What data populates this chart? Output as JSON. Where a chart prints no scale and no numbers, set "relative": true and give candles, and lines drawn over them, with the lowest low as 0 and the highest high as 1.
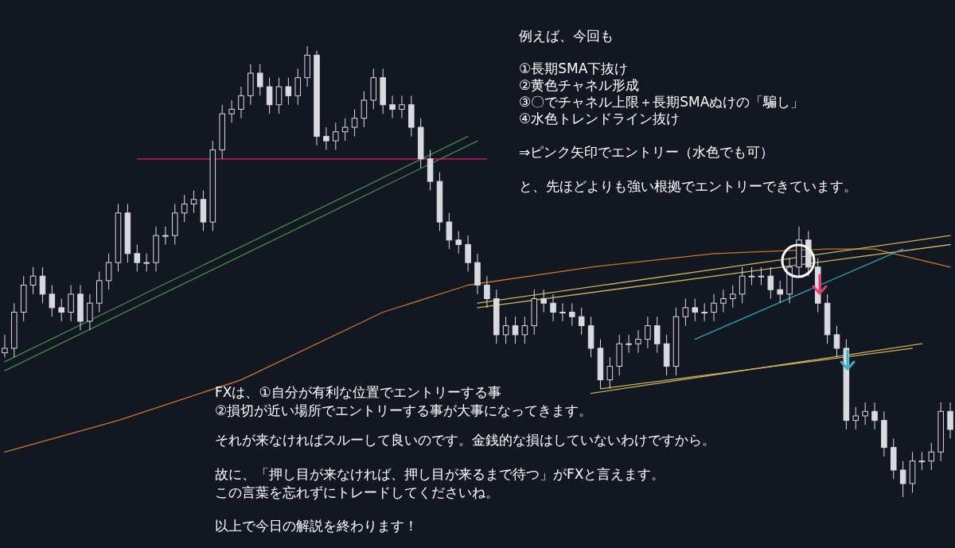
{
  "chart_data": {
    "type": "candlestick",
    "relative": true,
    "color": "#d9dadf",
    "categories": [
      null,
      null,
      null,
      null,
      null,
      null,
      null,
      null,
      null,
      null,
      null,
      null,
      null,
      null,
      null,
      null,
      null,
      null,
      null,
      null,
      null,
      null,
      null,
      null,
      null,
      null,
      null,
      null,
      null,
      null,
      null,
      null,
      null,
      null,
      null,
      null,
      null,
      null,
      null,
      null,
      null,
      null,
      null,
      null,
      null,
      null,
      null,
      null,
      null,
      null,
      null,
      null,
      null,
      null,
      null,
      null,
      null,
      null,
      null,
      null,
      null,
      null,
      null,
      null,
      null,
      null,
      null,
      null,
      null,
      null,
      null,
      null,
      null,
      null,
      null,
      null,
      null,
      null,
      null,
      null,
      null,
      null,
      null,
      null,
      null,
      null,
      null,
      null,
      null,
      null,
      null,
      null,
      null,
      null,
      null,
      null,
      null,
      null,
      null,
      null,
      null
    ],
    "ohlc": [
      [
        0.32,
        0.36,
        0.31,
        0.33
      ],
      [
        0.33,
        0.43,
        0.31,
        0.41
      ],
      [
        0.41,
        0.49,
        0.39,
        0.47
      ],
      [
        0.47,
        0.51,
        0.45,
        0.49
      ],
      [
        0.49,
        0.51,
        0.43,
        0.45
      ],
      [
        0.45,
        0.47,
        0.4,
        0.42
      ],
      [
        0.42,
        0.44,
        0.39,
        0.41
      ],
      [
        0.41,
        0.47,
        0.39,
        0.45
      ],
      [
        0.45,
        0.47,
        0.37,
        0.39
      ],
      [
        0.39,
        0.45,
        0.37,
        0.43
      ],
      [
        0.43,
        0.5,
        0.41,
        0.48
      ],
      [
        0.48,
        0.54,
        0.46,
        0.52
      ],
      [
        0.52,
        0.65,
        0.5,
        0.63
      ],
      [
        0.63,
        0.65,
        0.52,
        0.54
      ],
      [
        0.54,
        0.56,
        0.5,
        0.52
      ],
      [
        0.52,
        0.54,
        0.5,
        0.52
      ],
      [
        0.52,
        0.6,
        0.5,
        0.58
      ],
      [
        0.58,
        0.6,
        0.56,
        0.58
      ],
      [
        0.58,
        0.65,
        0.56,
        0.63
      ],
      [
        0.63,
        0.67,
        0.61,
        0.65
      ],
      [
        0.65,
        0.68,
        0.63,
        0.66
      ],
      [
        0.66,
        0.68,
        0.59,
        0.61
      ],
      [
        0.61,
        0.79,
        0.59,
        0.77
      ],
      [
        0.77,
        0.87,
        0.75,
        0.85
      ],
      [
        0.85,
        0.88,
        0.83,
        0.86
      ],
      [
        0.86,
        0.91,
        0.84,
        0.89
      ],
      [
        0.89,
        0.96,
        0.87,
        0.94
      ],
      [
        0.94,
        0.96,
        0.89,
        0.91
      ],
      [
        0.91,
        0.93,
        0.85,
        0.87
      ],
      [
        0.87,
        0.93,
        0.85,
        0.91
      ],
      [
        0.91,
        0.93,
        0.87,
        0.89
      ],
      [
        0.89,
        0.95,
        0.87,
        0.93
      ],
      [
        0.93,
        1.0,
        0.91,
        0.98
      ],
      [
        0.98,
        0.99,
        0.78,
        0.8
      ],
      [
        0.8,
        0.82,
        0.77,
        0.79
      ],
      [
        0.79,
        0.83,
        0.77,
        0.81
      ],
      [
        0.81,
        0.84,
        0.79,
        0.82
      ],
      [
        0.82,
        0.86,
        0.8,
        0.84
      ],
      [
        0.84,
        0.9,
        0.82,
        0.88
      ],
      [
        0.88,
        0.95,
        0.86,
        0.93
      ],
      [
        0.93,
        0.95,
        0.85,
        0.87
      ],
      [
        0.87,
        0.89,
        0.84,
        0.86
      ],
      [
        0.86,
        0.89,
        0.84,
        0.87
      ],
      [
        0.87,
        0.89,
        0.8,
        0.82
      ],
      [
        0.82,
        0.84,
        0.73,
        0.75
      ],
      [
        0.75,
        0.77,
        0.68,
        0.7
      ],
      [
        0.7,
        0.72,
        0.59,
        0.61
      ],
      [
        0.61,
        0.63,
        0.55,
        0.57
      ],
      [
        0.57,
        0.59,
        0.54,
        0.56
      ],
      [
        0.56,
        0.58,
        0.5,
        0.52
      ],
      [
        0.52,
        0.54,
        0.45,
        0.47
      ],
      [
        0.47,
        0.49,
        0.42,
        0.44
      ],
      [
        0.44,
        0.46,
        0.34,
        0.36
      ],
      [
        0.36,
        0.4,
        0.34,
        0.38
      ],
      [
        0.38,
        0.4,
        0.34,
        0.36
      ],
      [
        0.36,
        0.4,
        0.34,
        0.38
      ],
      [
        0.38,
        0.46,
        0.36,
        0.44
      ],
      [
        0.44,
        0.46,
        0.41,
        0.43
      ],
      [
        0.43,
        0.45,
        0.39,
        0.41
      ],
      [
        0.41,
        0.43,
        0.39,
        0.41
      ],
      [
        0.41,
        0.43,
        0.38,
        0.4
      ],
      [
        0.4,
        0.42,
        0.36,
        0.38
      ],
      [
        0.38,
        0.4,
        0.31,
        0.33
      ],
      [
        0.33,
        0.35,
        0.24,
        0.26
      ],
      [
        0.26,
        0.31,
        0.24,
        0.29
      ],
      [
        0.29,
        0.36,
        0.27,
        0.34
      ],
      [
        0.34,
        0.36,
        0.32,
        0.34
      ],
      [
        0.34,
        0.37,
        0.32,
        0.35
      ],
      [
        0.35,
        0.4,
        0.33,
        0.38
      ],
      [
        0.38,
        0.4,
        0.32,
        0.34
      ],
      [
        0.34,
        0.36,
        0.27,
        0.29
      ],
      [
        0.29,
        0.42,
        0.27,
        0.4
      ],
      [
        0.4,
        0.44,
        0.38,
        0.42
      ],
      [
        0.42,
        0.44,
        0.39,
        0.41
      ],
      [
        0.41,
        0.43,
        0.39,
        0.41
      ],
      [
        0.41,
        0.45,
        0.39,
        0.43
      ],
      [
        0.43,
        0.46,
        0.41,
        0.44
      ],
      [
        0.44,
        0.47,
        0.42,
        0.45
      ],
      [
        0.45,
        0.51,
        0.43,
        0.49
      ],
      [
        0.49,
        0.51,
        0.47,
        0.49
      ],
      [
        0.49,
        0.51,
        0.47,
        0.49
      ],
      [
        0.49,
        0.51,
        0.44,
        0.46
      ],
      [
        0.46,
        0.48,
        0.43,
        0.45
      ],
      [
        0.45,
        0.53,
        0.43,
        0.51
      ],
      [
        0.51,
        0.6,
        0.49,
        0.57
      ],
      [
        0.57,
        0.59,
        0.49,
        0.51
      ],
      [
        0.51,
        0.53,
        0.41,
        0.43
      ],
      [
        0.43,
        0.45,
        0.34,
        0.36
      ],
      [
        0.36,
        0.38,
        0.31,
        0.33
      ],
      [
        0.33,
        0.35,
        0.15,
        0.17
      ],
      [
        0.17,
        0.2,
        0.15,
        0.18
      ],
      [
        0.18,
        0.21,
        0.16,
        0.19
      ],
      [
        0.19,
        0.21,
        0.15,
        0.17
      ],
      [
        0.17,
        0.19,
        0.09,
        0.11
      ],
      [
        0.11,
        0.13,
        0.04,
        0.06
      ],
      [
        0.06,
        0.08,
        0.0,
        0.03
      ],
      [
        0.03,
        0.1,
        0.01,
        0.08
      ],
      [
        0.08,
        0.1,
        0.06,
        0.08
      ],
      [
        0.08,
        0.12,
        0.06,
        0.1
      ],
      [
        0.1,
        0.21,
        0.08,
        0.19
      ],
      [
        0.19,
        0.21,
        0.13,
        0.15
      ]
    ],
    "series": [
      {
        "type": "line",
        "color": "#c97a2c",
        "values": [
          0.1,
          null,
          null,
          null,
          null,
          null,
          null,
          null,
          null,
          null,
          null,
          null,
          0.17,
          null,
          null,
          null,
          null,
          null,
          null,
          null,
          null,
          null,
          null,
          null,
          null,
          0.26,
          null,
          null,
          null,
          null,
          null,
          null,
          null,
          null,
          null,
          null,
          null,
          null,
          null,
          null,
          0.41,
          null,
          null,
          null,
          null,
          null,
          null,
          null,
          null,
          0.47,
          null,
          null,
          null,
          null,
          null,
          null,
          null,
          null,
          null,
          null,
          null,
          null,
          0.51,
          null,
          null,
          null,
          null,
          null,
          null,
          null,
          null,
          null,
          null,
          null,
          null,
          0.54,
          null,
          null,
          null,
          null,
          null,
          null,
          null,
          null,
          null,
          null,
          null,
          0.55,
          null,
          null,
          null,
          null,
          0.55,
          null,
          null,
          null,
          null,
          null,
          null,
          null,
          0.51
        ]
      },
      {
        "type": "line",
        "color": "#3f8f47",
        "values": [
          0.3,
          null,
          null,
          null,
          null,
          null,
          null,
          null,
          null,
          null,
          null,
          null,
          null,
          null,
          null,
          null,
          null,
          null,
          null,
          null,
          null,
          null,
          null,
          null,
          null,
          null,
          null,
          null,
          null,
          null,
          null,
          null,
          null,
          null,
          null,
          null,
          null,
          null,
          null,
          null,
          null,
          null,
          null,
          null,
          null,
          null,
          null,
          null,
          null,
          0.8,
          null,
          null,
          null,
          null,
          null,
          null,
          null,
          null,
          null,
          null,
          null,
          null,
          null,
          null,
          null,
          null,
          null,
          null,
          null,
          null,
          null,
          null,
          null,
          null,
          null,
          null,
          null,
          null,
          null,
          null,
          null,
          null,
          null,
          null,
          null,
          null,
          null,
          null,
          null,
          null,
          null,
          null,
          null,
          null,
          null,
          null,
          null,
          null,
          null,
          null,
          null
        ]
      },
      {
        "type": "line",
        "color": "#3f8f47",
        "values": [
          0.28,
          null,
          null,
          null,
          null,
          null,
          null,
          null,
          null,
          null,
          null,
          null,
          null,
          null,
          null,
          null,
          null,
          null,
          null,
          null,
          null,
          null,
          null,
          null,
          null,
          null,
          null,
          null,
          null,
          null,
          null,
          null,
          null,
          null,
          null,
          null,
          null,
          null,
          null,
          null,
          null,
          null,
          null,
          null,
          null,
          null,
          null,
          null,
          null,
          null,
          0.79,
          null,
          null,
          null,
          null,
          null,
          null,
          null,
          null,
          null,
          null,
          null,
          null,
          null,
          null,
          null,
          null,
          null,
          null,
          null,
          null,
          null,
          null,
          null,
          null,
          null,
          null,
          null,
          null,
          null,
          null,
          null,
          null,
          null,
          null,
          null,
          null,
          null,
          null,
          null,
          null,
          null,
          null,
          null,
          null,
          null,
          null,
          null,
          null,
          null,
          null
        ]
      },
      {
        "type": "line",
        "color": "#e91e63",
        "values": [
          null,
          null,
          null,
          null,
          null,
          null,
          null,
          null,
          null,
          null,
          null,
          null,
          null,
          null,
          0.75,
          null,
          null,
          null,
          null,
          null,
          null,
          null,
          null,
          null,
          null,
          null,
          null,
          null,
          null,
          null,
          null,
          null,
          null,
          null,
          null,
          null,
          null,
          null,
          null,
          null,
          null,
          null,
          null,
          null,
          null,
          null,
          null,
          null,
          null,
          null,
          null,
          0.75,
          null,
          null,
          null,
          null,
          null,
          null,
          null,
          null,
          null,
          null,
          null,
          null,
          null,
          null,
          null,
          null,
          null,
          null,
          null,
          null,
          null,
          null,
          null,
          null,
          null,
          null,
          null,
          null,
          null,
          null,
          null,
          null,
          null,
          null,
          null,
          null,
          null,
          null,
          null,
          null,
          null,
          null,
          null,
          null,
          null,
          null,
          null,
          null,
          null
        ]
      },
      {
        "type": "line",
        "color": "#c9b458",
        "values": [
          null,
          null,
          null,
          null,
          null,
          null,
          null,
          null,
          null,
          null,
          null,
          null,
          null,
          null,
          null,
          null,
          null,
          null,
          null,
          null,
          null,
          null,
          null,
          null,
          null,
          null,
          null,
          null,
          null,
          null,
          null,
          null,
          null,
          null,
          null,
          null,
          null,
          null,
          null,
          null,
          null,
          null,
          null,
          null,
          null,
          null,
          null,
          null,
          null,
          null,
          0.43,
          null,
          null,
          null,
          null,
          null,
          null,
          null,
          null,
          null,
          null,
          null,
          null,
          null,
          null,
          null,
          null,
          null,
          null,
          null,
          null,
          null,
          null,
          null,
          null,
          null,
          null,
          null,
          null,
          null,
          null,
          null,
          null,
          null,
          null,
          null,
          null,
          null,
          null,
          null,
          null,
          null,
          null,
          null,
          null,
          null,
          null,
          null,
          null,
          null,
          0.58
        ]
      },
      {
        "type": "line",
        "color": "#c9b458",
        "values": [
          null,
          null,
          null,
          null,
          null,
          null,
          null,
          null,
          null,
          null,
          null,
          null,
          null,
          null,
          null,
          null,
          null,
          null,
          null,
          null,
          null,
          null,
          null,
          null,
          null,
          null,
          null,
          null,
          null,
          null,
          null,
          null,
          null,
          null,
          null,
          null,
          null,
          null,
          null,
          null,
          null,
          null,
          null,
          null,
          null,
          null,
          null,
          null,
          null,
          null,
          0.42,
          null,
          null,
          null,
          null,
          null,
          null,
          null,
          null,
          null,
          null,
          null,
          null,
          null,
          null,
          null,
          null,
          null,
          null,
          null,
          null,
          null,
          null,
          null,
          null,
          null,
          null,
          null,
          null,
          null,
          null,
          null,
          null,
          null,
          null,
          null,
          null,
          null,
          null,
          null,
          null,
          null,
          null,
          null,
          null,
          null,
          null,
          null,
          null,
          null,
          0.56
        ]
      },
      {
        "type": "line",
        "color": "#c9b458",
        "values": [
          null,
          null,
          null,
          null,
          null,
          null,
          null,
          null,
          null,
          null,
          null,
          null,
          null,
          null,
          null,
          null,
          null,
          null,
          null,
          null,
          null,
          null,
          null,
          null,
          null,
          null,
          null,
          null,
          null,
          null,
          null,
          null,
          null,
          null,
          null,
          null,
          null,
          null,
          null,
          null,
          null,
          null,
          null,
          null,
          null,
          null,
          null,
          null,
          null,
          null,
          null,
          null,
          null,
          null,
          null,
          null,
          null,
          null,
          null,
          null,
          null,
          null,
          0.23,
          null,
          null,
          null,
          null,
          null,
          null,
          null,
          null,
          null,
          null,
          null,
          null,
          null,
          null,
          null,
          null,
          null,
          null,
          null,
          null,
          null,
          null,
          null,
          null,
          null,
          null,
          null,
          null,
          null,
          null,
          null,
          null,
          null,
          null,
          0.34,
          null,
          null,
          null
        ]
      },
      {
        "type": "line",
        "color": "#c9b458",
        "values": [
          null,
          null,
          null,
          null,
          null,
          null,
          null,
          null,
          null,
          null,
          null,
          null,
          null,
          null,
          null,
          null,
          null,
          null,
          null,
          null,
          null,
          null,
          null,
          null,
          null,
          null,
          null,
          null,
          null,
          null,
          null,
          null,
          null,
          null,
          null,
          null,
          null,
          null,
          null,
          null,
          null,
          null,
          null,
          null,
          null,
          null,
          null,
          null,
          null,
          null,
          null,
          null,
          null,
          null,
          null,
          null,
          null,
          null,
          null,
          null,
          null,
          null,
          null,
          0.24,
          null,
          null,
          null,
          null,
          null,
          null,
          null,
          null,
          null,
          null,
          null,
          null,
          null,
          null,
          null,
          null,
          null,
          null,
          null,
          null,
          null,
          null,
          null,
          null,
          null,
          null,
          null,
          null,
          null,
          null,
          null,
          null,
          0.33,
          null,
          null,
          null,
          null
        ]
      },
      {
        "type": "line",
        "color": "#26a6b8",
        "values": [
          null,
          null,
          null,
          null,
          null,
          null,
          null,
          null,
          null,
          null,
          null,
          null,
          null,
          null,
          null,
          null,
          null,
          null,
          null,
          null,
          null,
          null,
          null,
          null,
          null,
          null,
          null,
          null,
          null,
          null,
          null,
          null,
          null,
          null,
          null,
          null,
          null,
          null,
          null,
          null,
          null,
          null,
          null,
          null,
          null,
          null,
          null,
          null,
          null,
          null,
          null,
          null,
          null,
          null,
          null,
          null,
          null,
          null,
          null,
          null,
          null,
          null,
          null,
          null,
          null,
          null,
          null,
          null,
          null,
          null,
          null,
          null,
          null,
          0.35,
          null,
          null,
          null,
          null,
          null,
          null,
          null,
          null,
          null,
          null,
          null,
          null,
          null,
          null,
          null,
          null,
          null,
          null,
          null,
          null,
          null,
          0.55,
          null,
          null,
          null,
          null,
          null
        ]
      }
    ],
    "annotations": [
      "例えば、今回も",
      "①長期SMA下抜け",
      "②黄色チャネル形成",
      "③〇でチャネル上限＋長期SMAぬけの「騙し」",
      "④水色トレンドライン抜け",
      "⇒ピンク矢印でエントリー（水色でも可）",
      "と、先ほどよりも強い根拠でエントリーできています。",
      "FXは、①自分が有利な位置でエントリーする事",
      "②損切が近い場所でエントリーする事が大事になってきます。",
      "それが来なければスルーして良いのです。金銭的な損はしていないわけですから。",
      "故に、「押し目が来なければ、押し目が来るまで待つ」がFXと言えます。",
      "この言葉を忘れずにトレードしてくださいね。",
      "以上で今日の解説を終わります！"
    ]
  }
}
